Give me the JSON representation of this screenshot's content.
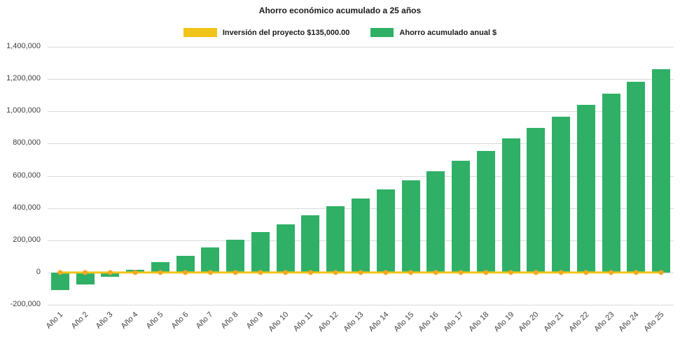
{
  "chart_data": {
    "type": "bar",
    "title": "Ahorro económico acumulado a 25 años",
    "categories": [
      "Año 1",
      "Año 2",
      "Año 3",
      "Año 4",
      "Año 5",
      "Año 6",
      "Año 7",
      "Año 8",
      "Año 9",
      "Año 10",
      "Año 11",
      "Año 12",
      "Año 13",
      "Año 14",
      "Año 15",
      "Año 16",
      "Año 17",
      "Año 18",
      "Año 19",
      "Año 20",
      "Año 21",
      "Año 22",
      "Año 23",
      "Año 24",
      "Año 25"
    ],
    "series": [
      {
        "name": "Inversión del proyecto $135,000.00",
        "type": "line",
        "color": "#F0C419",
        "marker_color": "#F5A623",
        "values": [
          0,
          0,
          0,
          0,
          0,
          0,
          0,
          0,
          0,
          0,
          0,
          0,
          0,
          0,
          0,
          0,
          0,
          0,
          0,
          0,
          0,
          0,
          0,
          0,
          0
        ]
      },
      {
        "name": "Ahorro acumulado anual $",
        "type": "bar",
        "color": "#2FB066",
        "values": [
          -110000,
          -75000,
          -25000,
          15000,
          65000,
          105000,
          155000,
          205000,
          250000,
          300000,
          355000,
          410000,
          460000,
          515000,
          570000,
          630000,
          695000,
          755000,
          830000,
          895000,
          965000,
          1040000,
          1110000,
          1185000,
          1260000
        ]
      }
    ],
    "ylim": [
      -200000,
      1400000
    ],
    "ytick_step": 200000,
    "yticks": [
      "-200,000",
      "0",
      "200,000",
      "400,000",
      "600,000",
      "800,000",
      "1,000,000",
      "1,200,000",
      "1,400,000"
    ],
    "grid": true,
    "legend_position": "top",
    "axis_label_color": "#404040",
    "gridline_color": "#D9D9D9",
    "background": "#FFFFFF"
  }
}
